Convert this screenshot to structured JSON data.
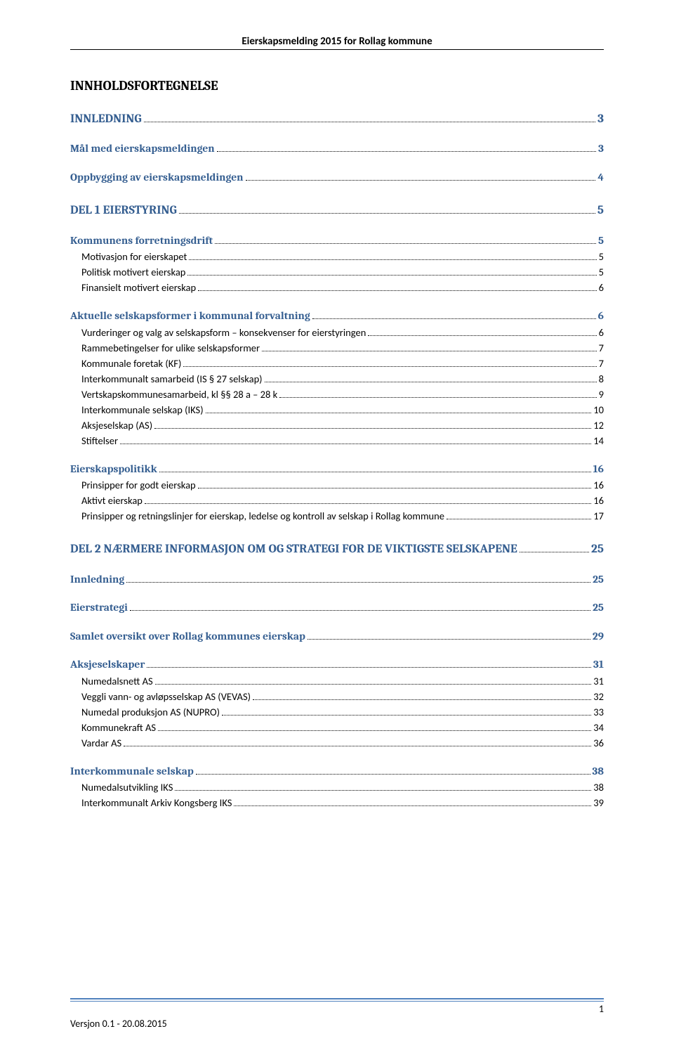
{
  "header": {
    "title": "Eierskapsmelding 2015 for Rollag kommune"
  },
  "toc": {
    "title": "INNHOLDSFORTEGNELSE",
    "entries": [
      {
        "level": 1,
        "label": "INNLEDNING",
        "page": "3"
      },
      {
        "level": 2,
        "label": "Mål med eierskapsmeldingen",
        "page": "3"
      },
      {
        "level": 2,
        "label": "Oppbygging av eierskapsmeldingen",
        "page": "4"
      },
      {
        "level": 1,
        "label": "DEL 1 EIERSTYRING",
        "page": "5"
      },
      {
        "level": 2,
        "label": "Kommunens forretningsdrift",
        "page": "5"
      },
      {
        "level": 3,
        "label": "Motivasjon for eierskapet",
        "page": "5"
      },
      {
        "level": 3,
        "label": "Politisk motivert eierskap",
        "page": "5"
      },
      {
        "level": 3,
        "label": "Finansielt motivert eierskap",
        "page": "6"
      },
      {
        "level": 2,
        "label": "Aktuelle selskapsformer i kommunal forvaltning",
        "page": "6"
      },
      {
        "level": 3,
        "label": "Vurderinger og valg av selskapsform – konsekvenser for eierstyringen",
        "page": "6"
      },
      {
        "level": 3,
        "label": "Rammebetingelser for ulike selskapsformer",
        "page": "7"
      },
      {
        "level": 3,
        "label": "Kommunale foretak (KF)",
        "page": "7"
      },
      {
        "level": 3,
        "label": "Interkommunalt samarbeid (IS § 27 selskap)",
        "page": "8"
      },
      {
        "level": 3,
        "label": "Vertskapskommunesamarbeid, kl §§ 28 a – 28 k",
        "page": "9"
      },
      {
        "level": 3,
        "label": "Interkommunale selskap (IKS)",
        "page": "10"
      },
      {
        "level": 3,
        "label": "Aksjeselskap (AS)",
        "page": "12"
      },
      {
        "level": 3,
        "label": "Stiftelser",
        "page": "14"
      },
      {
        "level": 2,
        "label": "Eierskapspolitikk",
        "page": "16"
      },
      {
        "level": 3,
        "label": "Prinsipper for godt eierskap",
        "page": "16"
      },
      {
        "level": 3,
        "label": "Aktivt eierskap",
        "page": "16"
      },
      {
        "level": 3,
        "label": "Prinsipper og retningslinjer for eierskap, ledelse og kontroll av selskap i Rollag kommune",
        "page": "17"
      },
      {
        "level": 1,
        "label": "DEL 2 NÆRMERE INFORMASJON OM OG STRATEGI FOR DE VIKTIGSTE SELSKAPENE",
        "page": "25"
      },
      {
        "level": 2,
        "label": "Innledning",
        "page": "25"
      },
      {
        "level": 2,
        "label": "Eierstrategi",
        "page": "25"
      },
      {
        "level": 2,
        "label": "Samlet oversikt over Rollag kommunes eierskap",
        "page": "29"
      },
      {
        "level": 2,
        "label": "Aksjeselskaper",
        "page": "31"
      },
      {
        "level": 3,
        "label": "Numedalsnett AS",
        "page": "31"
      },
      {
        "level": 3,
        "label": "Veggli vann- og avløpsselskap AS (VEVAS)",
        "page": "32"
      },
      {
        "level": 3,
        "label": "Numedal produksjon AS (NUPRO)",
        "page": "33"
      },
      {
        "level": 3,
        "label": "Kommunekraft AS",
        "page": "34"
      },
      {
        "level": 3,
        "label": "Vardar AS",
        "page": "36"
      },
      {
        "level": 2,
        "label": "Interkommunale selskap",
        "page": "38"
      },
      {
        "level": 3,
        "label": "Numedalsutvikling IKS",
        "page": "38"
      },
      {
        "level": 3,
        "label": "Interkommunalt Arkiv Kongsberg IKS",
        "page": "39"
      }
    ]
  },
  "footer": {
    "page_number": "1",
    "version_text": "Versjon 0.1 - 20.08.2015",
    "rule_color": "#4f81bd"
  },
  "colors": {
    "heading_blue": "#365f91",
    "footer_rule": "#4f81bd",
    "text": "#000000",
    "background": "#ffffff"
  },
  "fonts": {
    "body": "Calibri",
    "heading": "Cambria"
  }
}
